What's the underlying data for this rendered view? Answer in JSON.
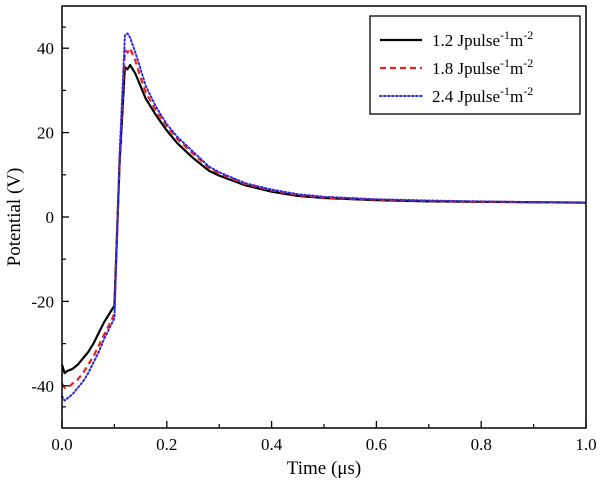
{
  "chart_data": {
    "type": "line",
    "title": "",
    "xlabel": "Time (μs)",
    "ylabel": "Potential (V)",
    "xlim": [
      0.0,
      1.0
    ],
    "ylim": [
      -50,
      50
    ],
    "xticks": [
      0.0,
      0.2,
      0.4,
      0.6,
      0.8,
      1.0
    ],
    "xtick_labels": [
      "0.0",
      "0.2",
      "0.4",
      "0.6",
      "0.8",
      "1.0"
    ],
    "yticks": [
      -40,
      -20,
      0,
      20,
      40
    ],
    "ytick_labels": [
      "-40",
      "-20",
      "0",
      "20",
      "40"
    ],
    "grid": false,
    "legend_position": "top-right",
    "series": [
      {
        "name_parts": [
          "1.2 Jpulse",
          "-1",
          "m",
          "-2"
        ],
        "color": "#000000",
        "style": "solid",
        "x": [
          0.0,
          0.005,
          0.01,
          0.02,
          0.03,
          0.04,
          0.05,
          0.06,
          0.07,
          0.08,
          0.09,
          0.1,
          0.11,
          0.12,
          0.125,
          0.13,
          0.14,
          0.15,
          0.16,
          0.18,
          0.2,
          0.22,
          0.25,
          0.28,
          0.3,
          0.35,
          0.4,
          0.45,
          0.5,
          0.6,
          0.7,
          0.8,
          0.9,
          1.0
        ],
        "y": [
          -35,
          -37,
          -36.5,
          -36,
          -35,
          -33.5,
          -32,
          -30,
          -27.5,
          -25,
          -23,
          -21,
          13,
          35.5,
          35,
          36,
          34,
          31,
          28,
          24,
          20.5,
          17.5,
          14,
          11,
          9.8,
          7.5,
          6,
          5,
          4.5,
          4,
          3.7,
          3.6,
          3.5,
          3.4
        ]
      },
      {
        "name_parts": [
          "1.8 Jpulse",
          "-1",
          "m",
          "-2"
        ],
        "color": "#e8231f",
        "style": "dashed",
        "x": [
          0.0,
          0.005,
          0.01,
          0.02,
          0.03,
          0.04,
          0.05,
          0.06,
          0.07,
          0.08,
          0.09,
          0.1,
          0.11,
          0.12,
          0.125,
          0.13,
          0.14,
          0.15,
          0.16,
          0.18,
          0.2,
          0.22,
          0.25,
          0.28,
          0.3,
          0.35,
          0.4,
          0.45,
          0.5,
          0.6,
          0.7,
          0.8,
          0.9,
          1.0
        ],
        "y": [
          -39.5,
          -40.5,
          -40.5,
          -39.5,
          -38.5,
          -37,
          -35,
          -33,
          -30.5,
          -28,
          -25.5,
          -23,
          14,
          39.5,
          39,
          40,
          37,
          33,
          29.5,
          25,
          21.5,
          18.5,
          15,
          11.7,
          10.3,
          7.8,
          6.3,
          5.2,
          4.6,
          4.1,
          3.8,
          3.6,
          3.5,
          3.4
        ]
      },
      {
        "name_parts": [
          "2.4 Jpulse",
          "-1",
          "m",
          "-2"
        ],
        "color": "#2b2bd9",
        "style": "dotted",
        "x": [
          0.0,
          0.005,
          0.01,
          0.02,
          0.03,
          0.04,
          0.05,
          0.06,
          0.07,
          0.08,
          0.09,
          0.1,
          0.11,
          0.12,
          0.125,
          0.13,
          0.14,
          0.15,
          0.16,
          0.18,
          0.2,
          0.22,
          0.25,
          0.28,
          0.3,
          0.35,
          0.4,
          0.45,
          0.5,
          0.6,
          0.7,
          0.8,
          0.9,
          1.0
        ],
        "y": [
          -42.5,
          -43.5,
          -43,
          -42,
          -40.5,
          -39,
          -37,
          -34.5,
          -32,
          -29,
          -26.5,
          -24,
          15,
          43,
          43.5,
          42.5,
          39,
          35,
          31,
          26,
          22,
          19,
          15.5,
          12,
          10.6,
          8,
          6.5,
          5.4,
          4.8,
          4.2,
          3.9,
          3.7,
          3.5,
          3.4
        ]
      }
    ]
  }
}
